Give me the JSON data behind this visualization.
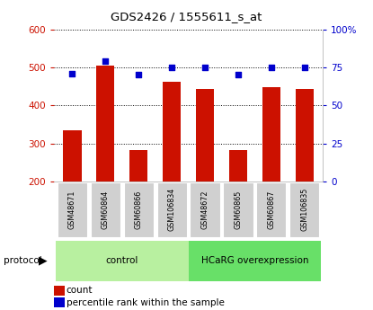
{
  "title": "GDS2426 / 1555611_s_at",
  "samples": [
    "GSM48671",
    "GSM60864",
    "GSM60866",
    "GSM106834",
    "GSM48672",
    "GSM60865",
    "GSM60867",
    "GSM106835"
  ],
  "counts": [
    335,
    505,
    283,
    462,
    443,
    283,
    448,
    444
  ],
  "percentile_ranks": [
    71,
    79,
    70,
    75,
    75,
    70,
    75,
    75
  ],
  "group_colors": [
    "#b8f0a0",
    "#68e068"
  ],
  "bar_color": "#cc1100",
  "dot_color": "#0000cc",
  "ylim_left": [
    200,
    600
  ],
  "ylim_right": [
    0,
    100
  ],
  "yticks_left": [
    200,
    300,
    400,
    500,
    600
  ],
  "yticks_right": [
    0,
    25,
    50,
    75,
    100
  ],
  "yticklabels_right": [
    "0",
    "25",
    "50",
    "75",
    "100%"
  ],
  "label_bg_color": "#d0d0d0",
  "protocol_label": "protocol",
  "legend_count": "count",
  "legend_pct": "percentile rank within the sample",
  "group_spans": [
    [
      0,
      3,
      "control"
    ],
    [
      4,
      7,
      "HCaRG overexpression"
    ]
  ]
}
